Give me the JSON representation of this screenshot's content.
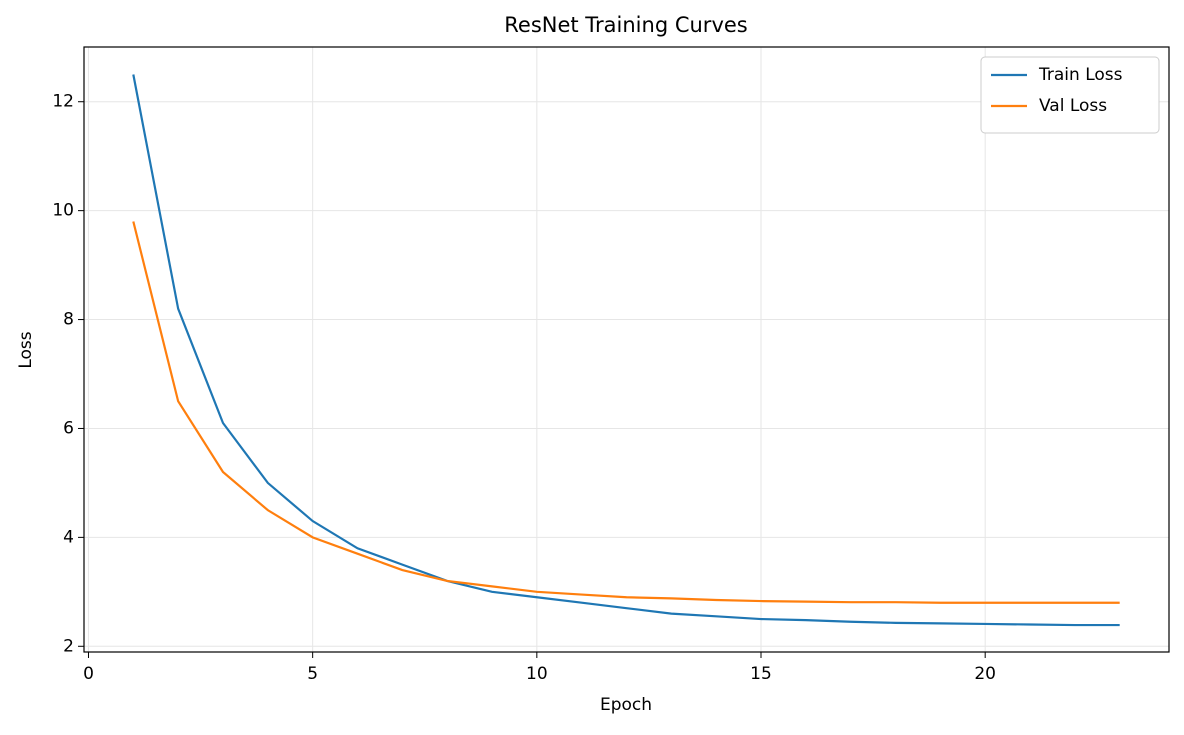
{
  "chart_data": {
    "type": "line",
    "title": "ResNet Training Curves",
    "xlabel": "Epoch",
    "ylabel": "Loss",
    "x": [
      1,
      2,
      3,
      4,
      5,
      6,
      7,
      8,
      9,
      10,
      11,
      12,
      13,
      14,
      15,
      16,
      17,
      18,
      19,
      20,
      21,
      22,
      23
    ],
    "series": [
      {
        "name": "Train Loss",
        "color": "#1f77b4",
        "values": [
          12.5,
          8.2,
          6.1,
          5.0,
          4.3,
          3.8,
          3.5,
          3.2,
          3.0,
          2.9,
          2.8,
          2.7,
          2.6,
          2.55,
          2.5,
          2.48,
          2.45,
          2.43,
          2.42,
          2.41,
          2.4,
          2.39,
          2.39
        ]
      },
      {
        "name": "Val Loss",
        "color": "#ff7f0e",
        "values": [
          9.8,
          6.5,
          5.2,
          4.5,
          4.0,
          3.7,
          3.4,
          3.2,
          3.1,
          3.0,
          2.95,
          2.9,
          2.88,
          2.85,
          2.83,
          2.82,
          2.81,
          2.81,
          2.8,
          2.8,
          2.8,
          2.8,
          2.8
        ]
      }
    ],
    "xlim": [
      -0.1,
      24.1
    ],
    "ylim": [
      1.895,
      13.005
    ],
    "xticks": [
      0,
      5,
      10,
      15,
      20
    ],
    "yticks": [
      2,
      4,
      6,
      8,
      10,
      12
    ],
    "grid": true,
    "legend": "upper right"
  }
}
